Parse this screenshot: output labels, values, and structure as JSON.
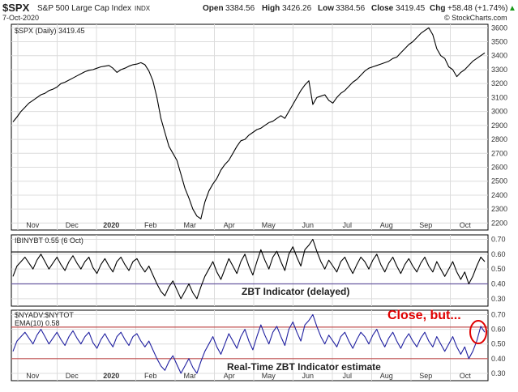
{
  "header": {
    "symbol": "$SPX",
    "name": "S&P 500 Large Cap Index",
    "exchange": "INDX",
    "date": "7-Oct-2020",
    "open_label": "Open",
    "open": "3384.56",
    "high_label": "High",
    "high": "3426.26",
    "low_label": "Low",
    "low": "3384.56",
    "close_label": "Close",
    "close": "3419.45",
    "chg_label": "Chg",
    "chg": "+58.48 (+1.74%)",
    "chg_arrow": "▲",
    "watermark": "© StockCharts.com",
    "legend": "$SPX (Daily) 3419.45"
  },
  "panel2": {
    "legend": "IBINYBT 0.55 (6 Oct)",
    "label": "ZBT Indicator (delayed)"
  },
  "panel3": {
    "legend1": "$NYADV:$NYTOT",
    "legend2": "EMA(10) 0.58",
    "label": "Real-Time ZBT Indicator estimate",
    "annotation": "Close, but..."
  },
  "colors": {
    "price": "#000000",
    "zbt_line": "#000000",
    "realtime_line": "#2020a0",
    "hline_dark": "#000000",
    "hline_red": "#c05050",
    "hline_purple": "#6a5aa0",
    "annotation": "#e00000",
    "gridline": "#dcdcdc"
  },
  "chart_data": [
    {
      "type": "line",
      "title": "$SPX (Daily) 3419.45",
      "x_tick_labels": [
        "Nov",
        "Dec",
        "2020",
        "Feb",
        "Mar",
        "Apr",
        "May",
        "Jun",
        "Jul",
        "Aug",
        "Sep",
        "Oct"
      ],
      "ylim": [
        2150,
        3625
      ],
      "y_ticks": [
        2200,
        2300,
        2400,
        2500,
        2600,
        2700,
        2800,
        2900,
        3000,
        3100,
        3200,
        3300,
        3400,
        3500,
        3600
      ],
      "grid": true,
      "series": [
        {
          "values": [
            2925,
            2960,
            3000,
            3030,
            3060,
            3080,
            3100,
            3120,
            3130,
            3150,
            3160,
            3175,
            3200,
            3210,
            3225,
            3240,
            3255,
            3270,
            3285,
            3295,
            3300,
            3310,
            3320,
            3325,
            3330,
            3310,
            3280,
            3300,
            3310,
            3325,
            3335,
            3340,
            3350,
            3335,
            3290,
            3220,
            3100,
            2950,
            2850,
            2750,
            2700,
            2650,
            2550,
            2450,
            2380,
            2300,
            2250,
            2230,
            2350,
            2430,
            2480,
            2520,
            2580,
            2620,
            2650,
            2700,
            2750,
            2790,
            2800,
            2830,
            2850,
            2870,
            2880,
            2900,
            2920,
            2930,
            2950,
            2970,
            2950,
            3000,
            3050,
            3100,
            3150,
            3190,
            3220,
            3050,
            3100,
            3110,
            3120,
            3080,
            3060,
            3100,
            3130,
            3150,
            3180,
            3210,
            3230,
            3260,
            3290,
            3310,
            3320,
            3330,
            3340,
            3350,
            3360,
            3380,
            3390,
            3420,
            3450,
            3480,
            3500,
            3530,
            3560,
            3580,
            3600,
            3550,
            3450,
            3400,
            3380,
            3320,
            3300,
            3250,
            3280,
            3300,
            3330,
            3360,
            3380,
            3400,
            3420
          ]
        }
      ]
    },
    {
      "type": "line",
      "title": "IBINYBT 0.55 (6 Oct)",
      "ylim": [
        0.25,
        0.73
      ],
      "y_ticks": [
        0.3,
        0.4,
        0.5,
        0.6,
        0.7
      ],
      "grid": true,
      "hlines": [
        0.615,
        0.4
      ],
      "series": [
        {
          "name": "IBINYBT",
          "values": [
            0.45,
            0.52,
            0.55,
            0.58,
            0.54,
            0.5,
            0.56,
            0.6,
            0.55,
            0.5,
            0.54,
            0.58,
            0.53,
            0.49,
            0.55,
            0.59,
            0.54,
            0.5,
            0.55,
            0.58,
            0.51,
            0.47,
            0.53,
            0.57,
            0.52,
            0.48,
            0.55,
            0.58,
            0.53,
            0.49,
            0.55,
            0.57,
            0.52,
            0.48,
            0.52,
            0.46,
            0.4,
            0.35,
            0.32,
            0.38,
            0.42,
            0.36,
            0.3,
            0.35,
            0.4,
            0.34,
            0.3,
            0.38,
            0.45,
            0.5,
            0.55,
            0.48,
            0.43,
            0.5,
            0.57,
            0.52,
            0.47,
            0.55,
            0.6,
            0.52,
            0.46,
            0.55,
            0.63,
            0.56,
            0.5,
            0.58,
            0.62,
            0.55,
            0.49,
            0.6,
            0.65,
            0.58,
            0.52,
            0.63,
            0.66,
            0.7,
            0.62,
            0.55,
            0.5,
            0.56,
            0.52,
            0.48,
            0.55,
            0.58,
            0.52,
            0.47,
            0.53,
            0.58,
            0.55,
            0.5,
            0.56,
            0.6,
            0.53,
            0.48,
            0.54,
            0.58,
            0.52,
            0.47,
            0.53,
            0.57,
            0.52,
            0.48,
            0.54,
            0.58,
            0.52,
            0.48,
            0.55,
            0.5,
            0.45,
            0.5,
            0.55,
            0.48,
            0.43,
            0.48,
            0.4,
            0.45,
            0.52,
            0.58,
            0.55
          ]
        }
      ]
    },
    {
      "type": "line",
      "title": "EMA(10) 0.58",
      "x_tick_labels": [
        "Nov",
        "Dec",
        "2020",
        "Feb",
        "Mar",
        "Apr",
        "May",
        "Jun",
        "Jul",
        "Aug",
        "Sep",
        "Oct"
      ],
      "ylim": [
        0.25,
        0.73
      ],
      "y_ticks": [
        0.3,
        0.4,
        0.5,
        0.6,
        0.7
      ],
      "grid": true,
      "hlines": [
        0.615,
        0.4
      ],
      "series": [
        {
          "name": "EMA(10)",
          "values": [
            0.45,
            0.52,
            0.55,
            0.58,
            0.54,
            0.5,
            0.56,
            0.6,
            0.55,
            0.5,
            0.54,
            0.58,
            0.53,
            0.49,
            0.55,
            0.59,
            0.54,
            0.5,
            0.55,
            0.58,
            0.51,
            0.47,
            0.53,
            0.57,
            0.52,
            0.48,
            0.55,
            0.58,
            0.53,
            0.49,
            0.55,
            0.57,
            0.52,
            0.48,
            0.52,
            0.46,
            0.4,
            0.35,
            0.32,
            0.38,
            0.42,
            0.36,
            0.3,
            0.35,
            0.4,
            0.34,
            0.3,
            0.38,
            0.45,
            0.5,
            0.55,
            0.48,
            0.43,
            0.5,
            0.57,
            0.52,
            0.47,
            0.55,
            0.6,
            0.52,
            0.46,
            0.55,
            0.63,
            0.56,
            0.5,
            0.58,
            0.62,
            0.55,
            0.49,
            0.6,
            0.65,
            0.58,
            0.52,
            0.63,
            0.66,
            0.7,
            0.62,
            0.55,
            0.5,
            0.56,
            0.52,
            0.48,
            0.55,
            0.58,
            0.52,
            0.47,
            0.53,
            0.58,
            0.55,
            0.5,
            0.56,
            0.6,
            0.53,
            0.48,
            0.54,
            0.58,
            0.52,
            0.47,
            0.53,
            0.57,
            0.52,
            0.48,
            0.54,
            0.58,
            0.52,
            0.48,
            0.55,
            0.5,
            0.45,
            0.5,
            0.55,
            0.48,
            0.43,
            0.48,
            0.4,
            0.45,
            0.52,
            0.62,
            0.58
          ]
        }
      ]
    }
  ]
}
